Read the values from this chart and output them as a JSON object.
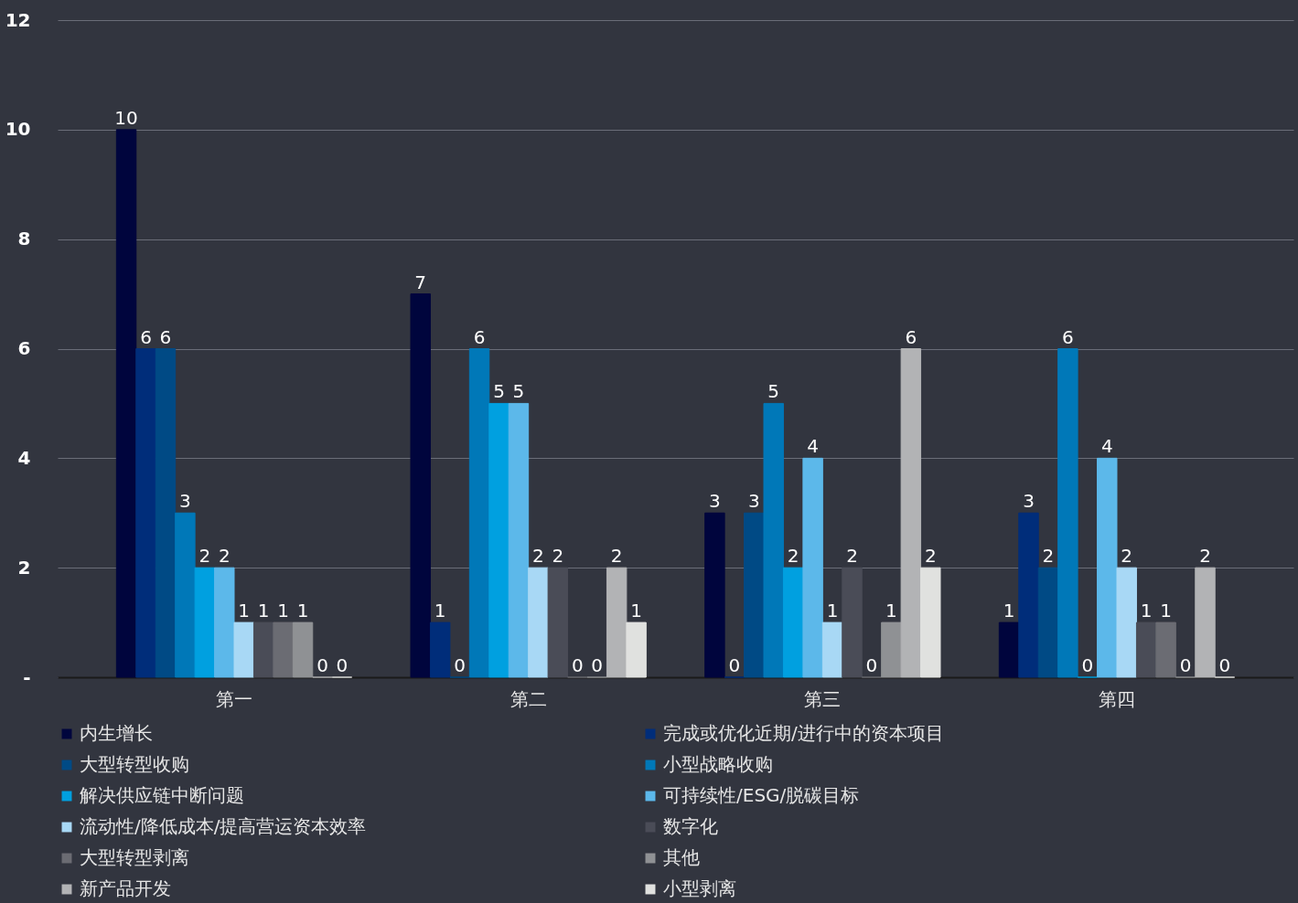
{
  "chart_data": {
    "type": "bar",
    "categories": [
      "第一",
      "第二",
      "第三",
      "第四"
    ],
    "series": [
      {
        "name": "内生增长",
        "color": "#00053d",
        "values": [
          10,
          7,
          3,
          1
        ]
      },
      {
        "name": "完成或优化近期/进行中的资本项目",
        "color": "#002d7a",
        "values": [
          6,
          1,
          0,
          3
        ]
      },
      {
        "name": "大型转型收购",
        "color": "#004a85",
        "values": [
          6,
          0,
          3,
          2
        ]
      },
      {
        "name": "小型战略收购",
        "color": "#0078b8",
        "values": [
          3,
          6,
          5,
          6
        ]
      },
      {
        "name": "解决供应链中断问题",
        "color": "#00a0e0",
        "values": [
          2,
          5,
          2,
          0
        ]
      },
      {
        "name": "可持续性/ESG/脱碳目标",
        "color": "#5cb8ea",
        "values": [
          2,
          5,
          4,
          4
        ]
      },
      {
        "name": "流动性/降低成本/提高营运资本效率",
        "color": "#a8d8f5",
        "values": [
          1,
          2,
          1,
          2
        ]
      },
      {
        "name": "数字化",
        "color": "#4a4c57",
        "values": [
          1,
          2,
          2,
          1
        ]
      },
      {
        "name": "大型转型剥离",
        "color": "#6b6c73",
        "values": [
          1,
          0,
          0,
          1
        ]
      },
      {
        "name": "其他",
        "color": "#8f9194",
        "values": [
          1,
          0,
          1,
          0
        ]
      },
      {
        "name": "新产品开发",
        "color": "#b2b3b5",
        "values": [
          0,
          2,
          6,
          2
        ]
      },
      {
        "name": "小型剥离",
        "color": "#e0e1df",
        "values": [
          0,
          1,
          2,
          0
        ]
      }
    ],
    "ylim": [
      0,
      12
    ],
    "yticks": [
      {
        "value": 0,
        "label": "-"
      },
      2,
      4,
      6,
      8,
      10,
      12
    ],
    "grid": "y",
    "data_labels": true,
    "legend": "bottom"
  }
}
